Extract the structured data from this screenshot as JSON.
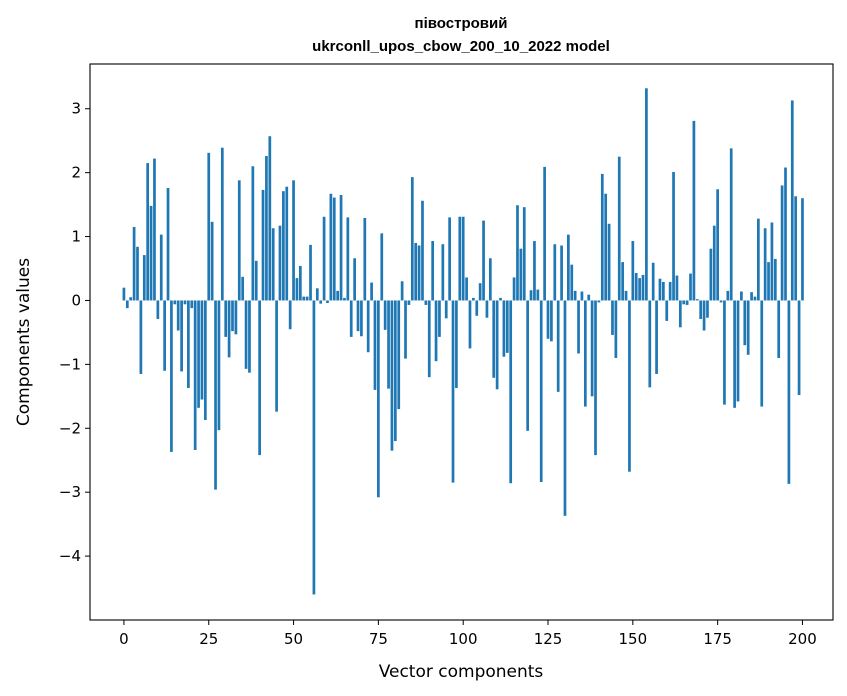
{
  "chart_data": {
    "type": "bar",
    "title_line1": "півостровий",
    "title_line2": "ukrconll_upos_cbow_200_10_2022 model",
    "xlabel": "Vector components",
    "ylabel": "Components values",
    "xlim": [
      -10,
      209
    ],
    "ylim": [
      -5,
      3.7
    ],
    "xticks": [
      0,
      25,
      50,
      75,
      100,
      125,
      150,
      175,
      200
    ],
    "xtick_labels": [
      "0",
      "25",
      "50",
      "75",
      "100",
      "125",
      "150",
      "175",
      "200"
    ],
    "yticks": [
      -4,
      -3,
      -2,
      -1,
      0,
      1,
      2,
      3
    ],
    "ytick_labels": [
      "−4",
      "−3",
      "−2",
      "−1",
      "0",
      "1",
      "2",
      "3"
    ],
    "grid": false,
    "bar_color": "#1f77b4",
    "values": [
      0.2,
      -0.12,
      0.05,
      1.15,
      0.84,
      -1.15,
      0.71,
      2.15,
      1.48,
      2.22,
      -0.29,
      1.03,
      -1.1,
      1.76,
      -2.37,
      -0.06,
      -0.47,
      -1.11,
      -0.06,
      -1.37,
      -0.12,
      -2.34,
      -1.68,
      -1.55,
      -1.87,
      2.31,
      1.23,
      -2.96,
      -2.03,
      2.39,
      -0.57,
      -0.89,
      -0.48,
      -0.53,
      1.88,
      0.37,
      -1.07,
      -1.13,
      2.1,
      0.62,
      -2.42,
      1.73,
      2.26,
      2.57,
      1.13,
      -1.74,
      1.17,
      1.71,
      1.78,
      -0.45,
      1.88,
      0.35,
      0.54,
      0.06,
      0.06,
      0.87,
      -4.6,
      0.19,
      -0.05,
      1.31,
      -0.04,
      1.67,
      1.61,
      0.15,
      1.65,
      0.04,
      1.3,
      -0.57,
      0.66,
      -0.48,
      -0.56,
      1.29,
      -0.81,
      0.28,
      -1.4,
      -3.08,
      1.05,
      -0.46,
      -1.38,
      -2.35,
      -2.2,
      -1.7,
      0.3,
      -0.91,
      -0.07,
      1.93,
      0.9,
      0.86,
      1.56,
      -0.07,
      -1.2,
      0.93,
      -0.95,
      -0.57,
      0.88,
      -0.28,
      1.3,
      -2.85,
      -1.37,
      1.31,
      1.31,
      0.36,
      -0.75,
      0.04,
      -0.24,
      0.27,
      1.25,
      -0.27,
      0.66,
      -1.21,
      -1.39,
      0.04,
      -0.88,
      -0.82,
      -2.86,
      0.36,
      1.49,
      0.81,
      1.46,
      -2.04,
      0.16,
      0.93,
      0.17,
      -2.84,
      2.09,
      -0.6,
      -0.64,
      0.88,
      -1.43,
      0.86,
      -3.37,
      1.03,
      0.56,
      0.15,
      -0.83,
      0.14,
      -1.66,
      0.09,
      -1.5,
      -2.42,
      -0.03,
      1.98,
      1.67,
      1.2,
      -0.54,
      -0.9,
      2.25,
      0.6,
      0.15,
      -2.68,
      0.93,
      0.43,
      0.35,
      0.4,
      3.32,
      -1.36,
      0.59,
      -1.15,
      0.34,
      0.29,
      -0.32,
      0.29,
      2.01,
      0.39,
      -0.42,
      -0.06,
      -0.07,
      0.42,
      2.81,
      0.02,
      -0.29,
      -0.47,
      -0.27,
      0.81,
      1.17,
      1.74,
      -0.03,
      -1.63,
      0.15,
      2.38,
      -1.68,
      -1.58,
      0.14,
      -0.7,
      -0.85,
      0.13,
      0.06,
      1.28,
      -1.66,
      1.13,
      0.6,
      1.22,
      0.65,
      -0.9,
      1.8,
      2.08,
      -2.87,
      3.13,
      1.63,
      -1.48,
      1.6
    ]
  }
}
